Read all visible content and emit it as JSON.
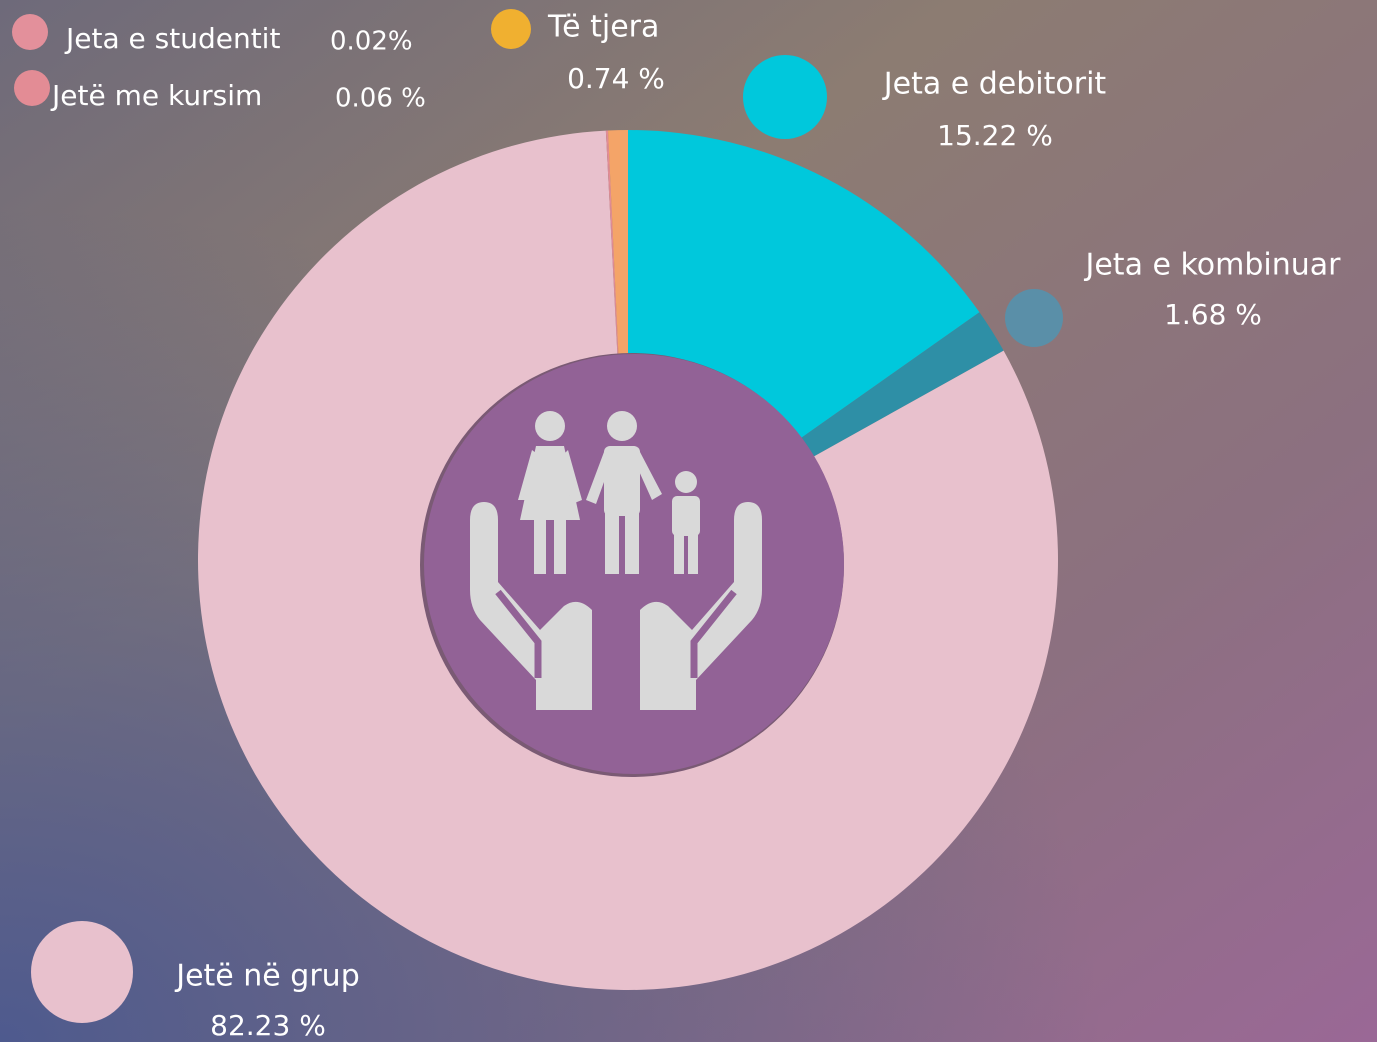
{
  "chart_data": {
    "type": "pie",
    "categories": [
      "Jeta e studentit",
      "Jetë  me kursim",
      "Të tjera",
      "Jeta e debitorit",
      "Jeta e kombinuar",
      "Jetë në grup"
    ],
    "values": [
      0.02,
      0.06,
      0.74,
      15.22,
      1.68,
      82.23
    ],
    "value_labels": [
      "0.02%",
      "0.06 %",
      "0.74 %",
      "15.22 %",
      "1.68 %",
      "82.23 %"
    ],
    "colors": [
      "#e3909b",
      "#e38c95",
      "#f4a468",
      "#00c8dc",
      "#2e8fa6",
      "#e8c1cd"
    ]
  }
}
